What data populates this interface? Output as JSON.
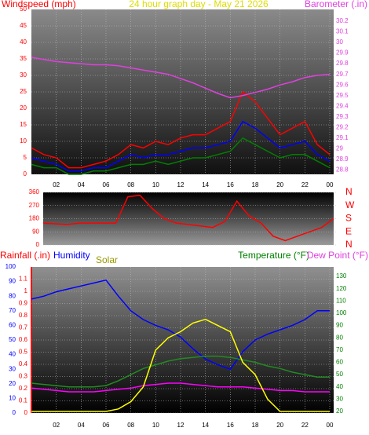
{
  "chart_data": [
    {
      "type": "line",
      "title": "24 hour graph day - May 21 2026",
      "ylabel": "Windspeed (mph)",
      "y2label": "Barometer (.in)",
      "x": [
        0,
        1,
        2,
        3,
        4,
        5,
        6,
        7,
        8,
        9,
        10,
        11,
        12,
        13,
        14,
        15,
        16,
        17,
        18,
        19,
        20,
        21,
        22,
        23,
        24
      ],
      "xlim": [
        0,
        24
      ],
      "xticks": [
        {
          "value": 2,
          "label": "02"
        },
        {
          "value": 4,
          "label": "04"
        },
        {
          "value": 6,
          "label": "06"
        },
        {
          "value": 8,
          "label": "08"
        },
        10,
        12,
        14,
        16,
        18,
        20,
        22,
        {
          "value": 24,
          "label": "00"
        }
      ],
      "ylim": [
        0,
        50
      ],
      "yticks": [
        0,
        5,
        10,
        15,
        20,
        25,
        30,
        35,
        40,
        45,
        50
      ],
      "y2lim": [
        28.76,
        30.31
      ],
      "y2ticks": [
        28.8,
        28.9,
        29,
        29.1,
        29.2,
        29.3,
        29.4,
        29.5,
        29.6,
        29.7,
        29.8,
        29.9,
        30,
        30.1,
        30.2
      ],
      "grid": true,
      "series": [
        {
          "color": "#ff0000",
          "values": [
            8,
            6,
            5,
            2,
            2,
            3,
            4,
            6,
            9,
            8,
            10,
            9,
            11,
            12,
            12,
            14,
            16,
            25,
            22,
            17,
            12,
            14,
            16,
            9,
            6
          ]
        },
        {
          "color": "#0000ff",
          "values": [
            5,
            4,
            3,
            1,
            1,
            2,
            2,
            4,
            6,
            5,
            6,
            6,
            7,
            8,
            8,
            9,
            10,
            16,
            14,
            11,
            8,
            9,
            10,
            6,
            4
          ]
        },
        {
          "color": "#008000",
          "values": [
            3,
            2,
            2,
            0,
            0,
            1,
            1,
            2,
            3,
            3,
            4,
            3,
            4,
            5,
            5,
            6,
            7,
            11,
            9,
            7,
            5,
            6,
            6,
            4,
            2
          ]
        },
        {
          "color": "#e040e0",
          "axis": "y2",
          "values": [
            29.86,
            29.84,
            29.82,
            29.81,
            29.8,
            29.79,
            29.79,
            29.78,
            29.76,
            29.74,
            29.72,
            29.7,
            29.66,
            29.62,
            29.57,
            29.52,
            29.48,
            29.5,
            29.53,
            29.56,
            29.6,
            29.63,
            29.67,
            29.69,
            29.7
          ]
        }
      ]
    },
    {
      "type": "line",
      "x": [
        0,
        1,
        2,
        3,
        4,
        5,
        6,
        7,
        8,
        9,
        10,
        11,
        12,
        13,
        14,
        15,
        16,
        17,
        18,
        19,
        20,
        21,
        22,
        23,
        24
      ],
      "xlim": [
        0,
        24
      ],
      "ylim": [
        0,
        360
      ],
      "yticks": [
        0,
        90,
        180,
        270,
        360
      ],
      "y2lim": [
        0,
        360
      ],
      "y2ticks": [
        {
          "value": 360,
          "label": "N"
        },
        {
          "value": 270,
          "label": "W"
        },
        {
          "value": 180,
          "label": "S"
        },
        {
          "value": 90,
          "label": "E"
        },
        {
          "value": 0,
          "label": "N"
        }
      ],
      "series": [
        {
          "color": "#ff0000",
          "values": [
            150,
            145,
            140,
            150,
            150,
            150,
            150,
            330,
            340,
            250,
            180,
            150,
            140,
            130,
            120,
            160,
            300,
            200,
            150,
            60,
            30,
            60,
            90,
            120,
            180
          ]
        }
      ]
    },
    {
      "type": "line",
      "ylabel": "Rainfall (.in)",
      "y3label": "Humidity",
      "solar_label": "Solar",
      "y2label": "Temperature (°F)",
      "y2label_b": "Dew Point (°F)",
      "x": [
        0,
        1,
        2,
        3,
        4,
        5,
        6,
        7,
        8,
        9,
        10,
        11,
        12,
        13,
        14,
        15,
        16,
        17,
        18,
        19,
        20,
        21,
        22,
        23,
        24
      ],
      "xlim": [
        0,
        24
      ],
      "xticks": [
        {
          "value": 2,
          "label": "02"
        },
        {
          "value": 4,
          "label": "04"
        },
        {
          "value": 6,
          "label": "06"
        },
        {
          "value": 8,
          "label": "08"
        },
        10,
        12,
        14,
        16,
        18,
        20,
        22,
        {
          "value": 24,
          "label": "00"
        }
      ],
      "ylim": [
        0,
        1.2
      ],
      "yticks": [
        0,
        0.1,
        0.2,
        0.3,
        0.4,
        0.5,
        0.6,
        0.7,
        0.8,
        0.9,
        1,
        1.1
      ],
      "y3lim": [
        0,
        100
      ],
      "y3ticks": [
        0,
        10,
        20,
        30,
        40,
        50,
        60,
        70,
        80,
        90,
        100
      ],
      "y2lim": [
        18.7,
        137.7
      ],
      "y2ticks": [
        20,
        30,
        40,
        50,
        60,
        70,
        80,
        90,
        100,
        110,
        120,
        130
      ],
      "grid": true,
      "series": [
        {
          "color": "#0000ff",
          "axis": "y3",
          "values": [
            78,
            80,
            83,
            85,
            87,
            89,
            91,
            80,
            70,
            64,
            60,
            57,
            52,
            44,
            37,
            33,
            30,
            42,
            50,
            54,
            57,
            60,
            64,
            70,
            70
          ]
        },
        {
          "color": "#228b22",
          "axis": "y2",
          "values": [
            43,
            42,
            41,
            40,
            40,
            40,
            41,
            45,
            50,
            55,
            58,
            61,
            63,
            64,
            65,
            65,
            64,
            62,
            60,
            57,
            55,
            52,
            50,
            48,
            48
          ]
        },
        {
          "color": "#ff00ff",
          "axis": "y2",
          "values": [
            39,
            38,
            37,
            36,
            36,
            36,
            37,
            38,
            39,
            41,
            42,
            43,
            43,
            42,
            41,
            40,
            40,
            40,
            39,
            38,
            37,
            37,
            36,
            36,
            36
          ]
        },
        {
          "color": "#ffff00",
          "axis": "y2",
          "values": [
            20,
            20,
            20,
            20,
            20,
            20,
            20,
            22,
            28,
            40,
            70,
            80,
            85,
            92,
            95,
            90,
            85,
            60,
            50,
            30,
            20,
            20,
            20,
            20,
            20
          ]
        }
      ]
    }
  ]
}
